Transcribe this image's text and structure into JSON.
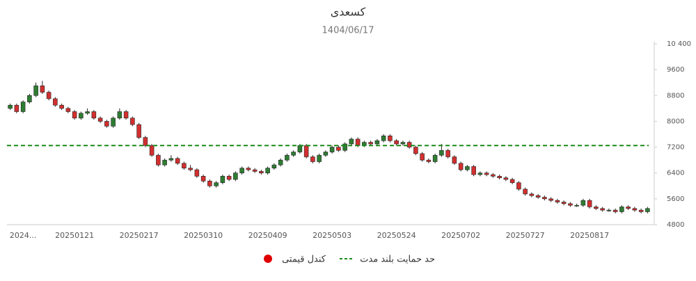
{
  "chart_data": {
    "type": "candlestick",
    "title": "کسعدی",
    "subtitle": "1404/06/17",
    "categories": [
      null,
      null,
      "2024...",
      null,
      null,
      null,
      null,
      null,
      null,
      null,
      "20250121",
      null,
      null,
      null,
      null,
      null,
      null,
      null,
      null,
      null,
      "20250217",
      null,
      null,
      null,
      null,
      null,
      null,
      null,
      null,
      null,
      "20250310",
      null,
      null,
      null,
      null,
      null,
      null,
      null,
      null,
      null,
      "20250409",
      null,
      null,
      null,
      null,
      null,
      null,
      null,
      null,
      null,
      "20250503",
      null,
      null,
      null,
      null,
      null,
      null,
      null,
      null,
      null,
      "20250524",
      null,
      null,
      null,
      null,
      null,
      null,
      null,
      null,
      null,
      "20250702",
      null,
      null,
      null,
      null,
      null,
      null,
      null,
      null,
      null,
      "20250727",
      null,
      null,
      null,
      null,
      null,
      null,
      null,
      null,
      null,
      "20250817",
      null,
      null,
      null,
      null,
      null,
      null,
      null,
      null,
      null
    ],
    "candles": {
      "name": "کندل قیمتی",
      "up_color": "#2e7d32",
      "down_color": "#d32f2f",
      "legend_color": "#e00000",
      "open": [
        8400,
        8500,
        8300,
        8600,
        8800,
        9100,
        8900,
        8700,
        8500,
        8400,
        8300,
        8100,
        8250,
        8300,
        8100,
        8000,
        7850,
        8100,
        8300,
        8100,
        7900,
        7500,
        7250,
        6950,
        6650,
        6800,
        6850,
        6700,
        6550,
        6500,
        6300,
        6150,
        6000,
        6100,
        6300,
        6200,
        6400,
        6550,
        6500,
        6450,
        6400,
        6550,
        6650,
        6800,
        6950,
        7050,
        7250,
        6900,
        6750,
        6950,
        7050,
        7200,
        7100,
        7300,
        7450,
        7250,
        7350,
        7300,
        7400,
        7550,
        7400,
        7300,
        7350,
        7200,
        7000,
        6800,
        6750,
        6950,
        7100,
        6900,
        6700,
        6500,
        6600,
        6350,
        6400,
        6350,
        6300,
        6250,
        6200,
        6100,
        5900,
        5750,
        5700,
        5650,
        5600,
        5550,
        5500,
        5450,
        5400,
        5400,
        5550,
        5350,
        5300,
        5250,
        5250,
        5200,
        5350,
        5300,
        5250,
        5200
      ],
      "high": [
        8550,
        8550,
        8650,
        8850,
        9200,
        9250,
        8950,
        8750,
        8550,
        8450,
        8350,
        8300,
        8400,
        8350,
        8150,
        8050,
        8150,
        8400,
        8350,
        8150,
        7950,
        7550,
        7300,
        7000,
        6850,
        6950,
        6900,
        6750,
        6650,
        6550,
        6350,
        6200,
        6150,
        6350,
        6350,
        6450,
        6600,
        6600,
        6550,
        6500,
        6600,
        6700,
        6850,
        7000,
        7100,
        7300,
        7300,
        6950,
        7000,
        7100,
        7250,
        7250,
        7350,
        7500,
        7500,
        7400,
        7400,
        7450,
        7600,
        7600,
        7450,
        7400,
        7400,
        7250,
        7050,
        6850,
        7000,
        7300,
        7150,
        6950,
        6750,
        6650,
        6650,
        6450,
        6450,
        6400,
        6350,
        6300,
        6250,
        6150,
        5950,
        5800,
        5750,
        5700,
        5650,
        5600,
        5550,
        5500,
        5450,
        5600,
        5600,
        5400,
        5350,
        5300,
        5300,
        5400,
        5400,
        5350,
        5300,
        5350
      ],
      "low": [
        8350,
        8250,
        8250,
        8550,
        8750,
        8850,
        8650,
        8450,
        8350,
        8250,
        8050,
        8050,
        8200,
        8050,
        7950,
        7800,
        7800,
        8050,
        8050,
        7850,
        7450,
        7200,
        6900,
        6600,
        6600,
        6750,
        6650,
        6500,
        6450,
        6250,
        6100,
        5950,
        5950,
        6050,
        6150,
        6150,
        6350,
        6450,
        6400,
        6350,
        6350,
        6500,
        6600,
        6750,
        6900,
        7000,
        6850,
        6700,
        6700,
        6900,
        7000,
        7050,
        7050,
        7250,
        7200,
        7200,
        7250,
        7250,
        7350,
        7350,
        7250,
        7250,
        7150,
        6950,
        6750,
        6700,
        6700,
        6900,
        6850,
        6650,
        6450,
        6450,
        6300,
        6300,
        6300,
        6250,
        6200,
        6150,
        6050,
        5850,
        5700,
        5650,
        5600,
        5550,
        5500,
        5450,
        5400,
        5350,
        5350,
        5350,
        5300,
        5250,
        5200,
        5200,
        5150,
        5150,
        5250,
        5200,
        5150,
        5150
      ],
      "close": [
        8500,
        8300,
        8600,
        8800,
        9100,
        8900,
        8700,
        8500,
        8400,
        8300,
        8100,
        8250,
        8300,
        8100,
        8000,
        7850,
        8100,
        8300,
        8100,
        7900,
        7500,
        7250,
        6950,
        6650,
        6800,
        6850,
        6700,
        6550,
        6500,
        6300,
        6150,
        6000,
        6100,
        6300,
        6200,
        6400,
        6550,
        6500,
        6450,
        6400,
        6550,
        6650,
        6800,
        6950,
        7050,
        7250,
        6900,
        6750,
        6950,
        7050,
        7200,
        7100,
        7300,
        7450,
        7250,
        7350,
        7300,
        7400,
        7550,
        7400,
        7300,
        7350,
        7200,
        7000,
        6800,
        6750,
        6950,
        7100,
        6900,
        6700,
        6500,
        6600,
        6350,
        6400,
        6350,
        6300,
        6250,
        6200,
        6100,
        5900,
        5750,
        5700,
        5650,
        5600,
        5550,
        5500,
        5450,
        5400,
        5400,
        5550,
        5350,
        5300,
        5250,
        5250,
        5200,
        5350,
        5300,
        5250,
        5200,
        5300
      ]
    },
    "support": {
      "name": "حد حمایت بلند مدت",
      "value": 7250,
      "color": "#1a8a1a"
    },
    "ylim": [
      4800,
      10400
    ],
    "yticks": [
      4800,
      5600,
      6400,
      7200,
      8000,
      8800,
      9600,
      {
        "value": 10400,
        "label": "10 400"
      }
    ]
  }
}
